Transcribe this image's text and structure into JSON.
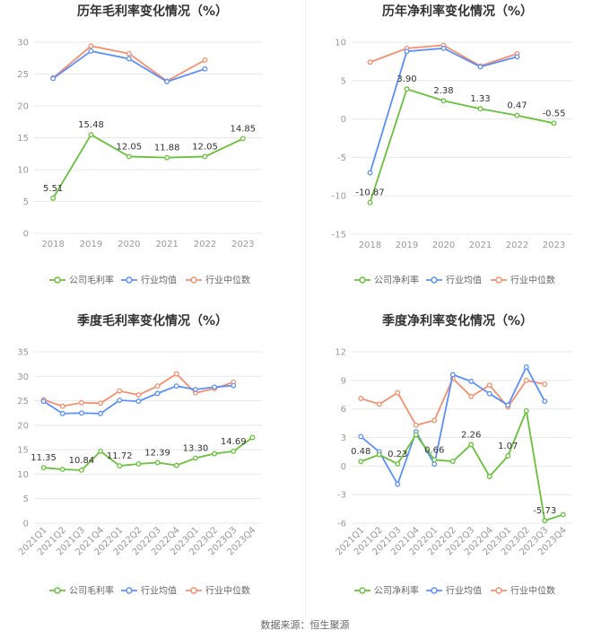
{
  "colors": {
    "company": "#67c23a",
    "industry_avg": "#5b8ff9",
    "industry_median": "#f4906e"
  },
  "legend_labels": {
    "gross": [
      "公司毛利率",
      "行业均值",
      "行业中位数"
    ],
    "net": [
      "公司净利率",
      "行业均值",
      "行业中位数"
    ]
  },
  "source": "数据来源：恒生聚源",
  "chart_data": [
    {
      "id": "annual-gross",
      "type": "line",
      "title": "历年毛利率变化情况（%）",
      "categories": [
        "2018",
        "2019",
        "2020",
        "2021",
        "2022",
        "2023"
      ],
      "ylim": [
        0,
        30
      ],
      "yticks": [
        0,
        5,
        10,
        15,
        20,
        25,
        30
      ],
      "series": [
        {
          "name": "公司毛利率",
          "values": [
            5.51,
            15.48,
            12.05,
            11.88,
            12.05,
            14.85
          ],
          "labels": [
            "5.51",
            "15.48",
            "12.05",
            "11.88",
            "12.05",
            "14.85"
          ]
        },
        {
          "name": "行业均值",
          "values": [
            24.3,
            28.6,
            27.4,
            23.8,
            25.8,
            null
          ]
        },
        {
          "name": "行业中位数",
          "values": [
            24.4,
            29.4,
            28.2,
            23.9,
            27.2,
            null
          ]
        }
      ]
    },
    {
      "id": "annual-net",
      "type": "line",
      "title": "历年净利率变化情况（%）",
      "categories": [
        "2018",
        "2019",
        "2020",
        "2021",
        "2022",
        "2023"
      ],
      "ylim": [
        -15,
        10
      ],
      "yticks": [
        -15,
        -10,
        -5,
        0,
        5,
        10
      ],
      "series": [
        {
          "name": "公司净利率",
          "values": [
            -10.87,
            3.9,
            2.38,
            1.33,
            0.47,
            -0.55
          ],
          "labels": [
            "-10.87",
            "3.90",
            "2.38",
            "1.33",
            "0.47",
            "-0.55"
          ]
        },
        {
          "name": "行业均值",
          "values": [
            -7.0,
            8.8,
            9.2,
            6.8,
            8.1,
            null
          ]
        },
        {
          "name": "行业中位数",
          "values": [
            7.4,
            9.2,
            9.6,
            6.9,
            8.5,
            null
          ]
        }
      ]
    },
    {
      "id": "quarterly-gross",
      "type": "line",
      "title": "季度毛利率变化情况（%）",
      "categories": [
        "2021Q1",
        "2021Q2",
        "2021Q3",
        "2021Q4",
        "2022Q1",
        "2022Q2",
        "2022Q3",
        "2022Q4",
        "2023Q1",
        "2023Q2",
        "2023Q3",
        "2023Q4"
      ],
      "ylim": [
        0,
        35
      ],
      "yticks": [
        0,
        5,
        10,
        15,
        20,
        25,
        30,
        35
      ],
      "series": [
        {
          "name": "公司毛利率",
          "values": [
            11.35,
            11.0,
            10.84,
            14.7,
            11.72,
            12.1,
            12.39,
            11.8,
            13.3,
            14.2,
            14.69,
            17.5
          ],
          "labels": [
            "11.35",
            "",
            "10.84",
            "",
            "11.72",
            "",
            "12.39",
            "",
            "13.30",
            "",
            "14.69",
            ""
          ]
        },
        {
          "name": "行业均值",
          "values": [
            24.9,
            22.4,
            22.5,
            22.4,
            25.1,
            24.9,
            26.5,
            28.0,
            27.3,
            27.8,
            28.1,
            null
          ]
        },
        {
          "name": "行业中位数",
          "values": [
            25.2,
            23.9,
            24.6,
            24.5,
            27.0,
            26.2,
            28.0,
            30.5,
            26.6,
            27.5,
            28.8,
            null
          ]
        }
      ]
    },
    {
      "id": "quarterly-net",
      "type": "line",
      "title": "季度净利率变化情况（%）",
      "categories": [
        "2021Q1",
        "2021Q2",
        "2021Q3",
        "2021Q4",
        "2022Q1",
        "2022Q2",
        "2022Q3",
        "2022Q4",
        "2023Q1",
        "2023Q2",
        "2023Q3",
        "2023Q4"
      ],
      "ylim": [
        -6,
        12
      ],
      "yticks": [
        -6,
        -3,
        0,
        3,
        6,
        9,
        12
      ],
      "series": [
        {
          "name": "公司净利率",
          "values": [
            0.48,
            1.2,
            0.23,
            3.3,
            0.66,
            0.5,
            2.26,
            -1.1,
            1.07,
            5.8,
            -5.73,
            -5.1
          ],
          "labels": [
            "0.48",
            "",
            "0.23",
            "",
            "0.66",
            "",
            "2.26",
            "",
            "1.07",
            "",
            "-5.73",
            ""
          ]
        },
        {
          "name": "行业均值",
          "values": [
            3.1,
            1.5,
            -1.9,
            3.6,
            0.2,
            9.6,
            8.9,
            7.6,
            6.4,
            10.4,
            6.8,
            null
          ]
        },
        {
          "name": "行业中位数",
          "values": [
            7.1,
            6.5,
            7.7,
            4.3,
            4.8,
            9.2,
            7.3,
            8.5,
            6.2,
            9.0,
            8.6,
            null
          ]
        }
      ]
    }
  ]
}
